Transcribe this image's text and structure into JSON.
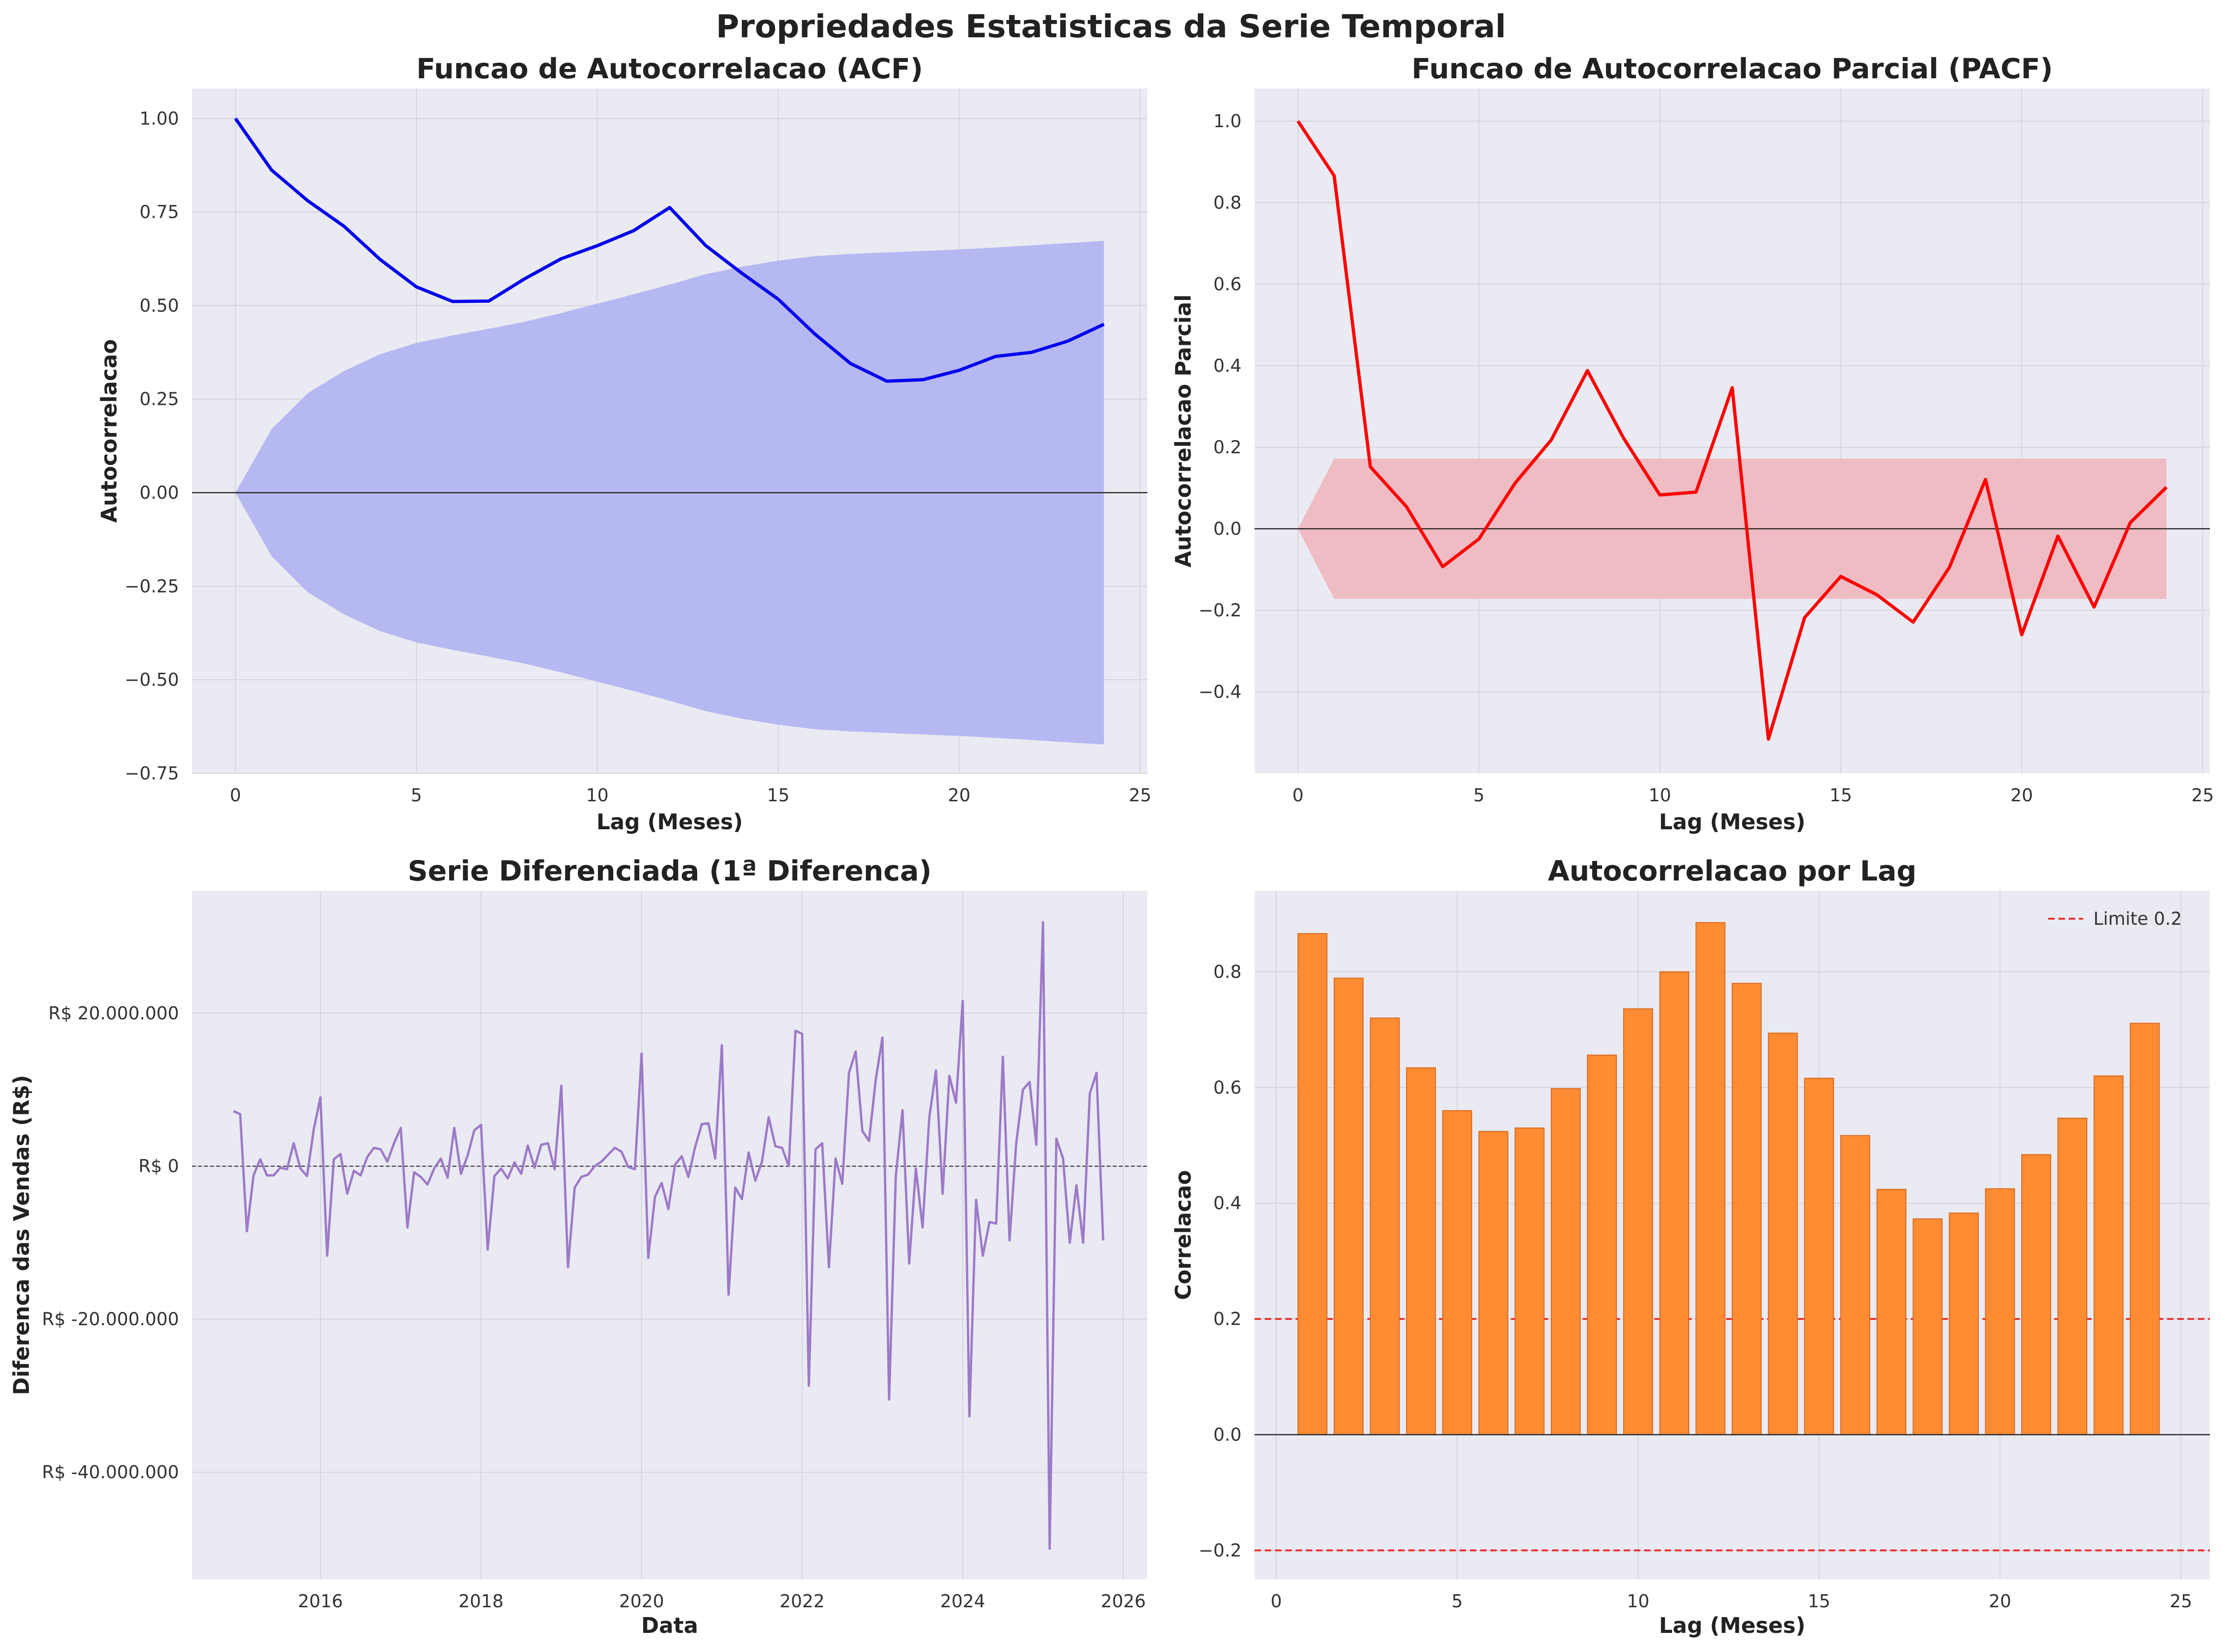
{
  "figure": {
    "title": "Propriedades Estatisticas da Serie Temporal"
  },
  "chart_data": [
    {
      "type": "line",
      "title": "Funcao de Autocorrelacao (ACF)",
      "xlabel": "Lag (Meses)",
      "ylabel": "Autocorrelacao",
      "xlim": [
        -1.2,
        25.2
      ],
      "ylim": [
        -0.75,
        1.08
      ],
      "xticks": [
        0,
        5,
        10,
        15,
        20,
        25
      ],
      "xtick_labels": [
        "0",
        "5",
        "10",
        "15",
        "20",
        "25"
      ],
      "yticks": [
        -0.75,
        -0.5,
        -0.25,
        0.0,
        0.25,
        0.5,
        0.75,
        1.0
      ],
      "ytick_labels": [
        "−0.75",
        "−0.50",
        "−0.25",
        "0.00",
        "0.25",
        "0.50",
        "0.75",
        "1.00"
      ],
      "grid": true,
      "colors": {
        "line": "#0000ee",
        "band": "#b6b8f2"
      },
      "x": [
        0,
        1,
        2,
        3,
        4,
        5,
        6,
        7,
        8,
        9,
        10,
        11,
        12,
        13,
        14,
        15,
        16,
        17,
        18,
        19,
        20,
        21,
        22,
        23,
        24
      ],
      "series": [
        {
          "values": [
            1.0,
            0.862,
            0.78,
            0.712,
            0.623,
            0.55,
            0.511,
            0.512,
            0.572,
            0.625,
            0.66,
            0.7,
            0.762,
            0.66,
            0.586,
            0.517,
            0.425,
            0.345,
            0.298,
            0.302,
            0.327,
            0.364,
            0.375,
            0.405,
            0.45
          ]
        }
      ],
      "confidence_band": {
        "upper": [
          0.0,
          0.17,
          0.266,
          0.325,
          0.37,
          0.4,
          0.42,
          0.438,
          0.457,
          0.48,
          0.505,
          0.53,
          0.556,
          0.584,
          0.604,
          0.62,
          0.632,
          0.638,
          0.642,
          0.646,
          0.65,
          0.655,
          0.661,
          0.667,
          0.673
        ]
      }
    },
    {
      "type": "line",
      "title": "Funcao de Autocorrelacao Parcial (PACF)",
      "xlabel": "Lag (Meses)",
      "ylabel": "Autocorrelacao Parcial",
      "xlim": [
        -1.2,
        25.2
      ],
      "ylim": [
        -0.6,
        1.08
      ],
      "xticks": [
        0,
        5,
        10,
        15,
        20,
        25
      ],
      "xtick_labels": [
        "0",
        "5",
        "10",
        "15",
        "20",
        "25"
      ],
      "yticks": [
        -0.4,
        -0.2,
        0.0,
        0.2,
        0.4,
        0.6,
        0.8,
        1.0
      ],
      "ytick_labels": [
        "−0.4",
        "−0.2",
        "0.0",
        "0.2",
        "0.4",
        "0.6",
        "0.8",
        "1.0"
      ],
      "grid": true,
      "colors": {
        "line": "#ff0000",
        "band": "#efbcc4"
      },
      "x": [
        0,
        1,
        2,
        3,
        4,
        5,
        6,
        7,
        8,
        9,
        10,
        11,
        12,
        13,
        14,
        15,
        16,
        17,
        18,
        19,
        20,
        21,
        22,
        23,
        24
      ],
      "series": [
        {
          "values": [
            1.0,
            0.866,
            0.152,
            0.054,
            -0.093,
            -0.025,
            0.112,
            0.218,
            0.388,
            0.222,
            0.083,
            0.09,
            0.346,
            -0.516,
            -0.218,
            -0.117,
            -0.162,
            -0.229,
            -0.095,
            0.121,
            -0.26,
            -0.018,
            -0.192,
            0.015,
            0.102
          ]
        }
      ],
      "confidence_band": {
        "upper": [
          0.0,
          0.172,
          0.172,
          0.172,
          0.172,
          0.172,
          0.172,
          0.172,
          0.172,
          0.172,
          0.172,
          0.172,
          0.172,
          0.172,
          0.172,
          0.172,
          0.172,
          0.172,
          0.172,
          0.172,
          0.172,
          0.172,
          0.172,
          0.172,
          0.172
        ]
      }
    },
    {
      "type": "line",
      "title": "Serie Diferenciada (1ª Diferenca)",
      "xlabel": "Data",
      "ylabel": "Diferenca das Vendas (R$)",
      "xlim": [
        2014.4,
        2026.3
      ],
      "ylim": [
        -54000000,
        36000000
      ],
      "xticks": [
        2016,
        2018,
        2020,
        2022,
        2024,
        2026
      ],
      "xtick_labels": [
        "2016",
        "2018",
        "2020",
        "2022",
        "2024",
        "2026"
      ],
      "yticks": [
        -40000000,
        -20000000,
        0,
        20000000
      ],
      "ytick_labels": [
        "R$ -40.000.000",
        "R$ -20.000.000",
        "R$ 0",
        "R$ 20.000.000"
      ],
      "grid": true,
      "colors": {
        "line": "#9d7ac8"
      },
      "x_start": "2014-12",
      "x_step": "1 mes",
      "series": [
        {
          "values": [
            7200000,
            6800000,
            -8500000,
            -1200000,
            900000,
            -1200000,
            -1200000,
            -200000,
            -400000,
            3000000,
            -300000,
            -1300000,
            4800000,
            9000000,
            -11700000,
            900000,
            1600000,
            -3600000,
            -600000,
            -1200000,
            1200000,
            2400000,
            2200000,
            600000,
            3000000,
            5000000,
            -8000000,
            -800000,
            -1400000,
            -2400000,
            -300000,
            1000000,
            -1500000,
            5000000,
            -1000000,
            1400000,
            4700000,
            5400000,
            -10900000,
            -1300000,
            -300000,
            -1600000,
            500000,
            -1000000,
            2700000,
            -200000,
            2800000,
            3000000,
            -400000,
            10500000,
            -13200000,
            -2800000,
            -1400000,
            -1100000,
            0,
            600000,
            1500000,
            2400000,
            1900000,
            -100000,
            -400000,
            14700000,
            -12000000,
            -4000000,
            -2200000,
            -5600000,
            200000,
            1300000,
            -1400000,
            2500000,
            5500000,
            5600000,
            1000000,
            15800000,
            -16800000,
            -2800000,
            -4300000,
            1800000,
            -1900000,
            600000,
            6400000,
            2600000,
            2400000,
            0,
            17700000,
            17300000,
            -28700000,
            2200000,
            3000000,
            -13200000,
            1000000,
            -2300000,
            12200000,
            15000000,
            4600000,
            3300000,
            11300000,
            16800000,
            -30500000,
            -1300000,
            7300000,
            -12700000,
            -300000,
            -8000000,
            6300000,
            12500000,
            -3600000,
            11800000,
            8300000,
            21600000,
            -32700000,
            -4400000,
            -11700000,
            -7300000,
            -7500000,
            14300000,
            -9700000,
            3000000,
            10000000,
            11000000,
            2800000,
            31900000,
            -50000000,
            3600000,
            1000000,
            -10000000,
            -2500000,
            -10000000,
            9500000,
            12200000,
            -9700000
          ]
        }
      ]
    },
    {
      "type": "bar",
      "title": "Autocorrelacao por Lag",
      "xlabel": "Lag (Meses)",
      "ylabel": "Correlacao",
      "xlim": [
        -0.6,
        25.8
      ],
      "ylim": [
        -0.25,
        0.94
      ],
      "xticks": [
        0,
        5,
        10,
        15,
        20,
        25
      ],
      "xtick_labels": [
        "0",
        "5",
        "10",
        "15",
        "20",
        "25"
      ],
      "yticks": [
        -0.2,
        0.0,
        0.2,
        0.4,
        0.6,
        0.8
      ],
      "ytick_labels": [
        "−0.2",
        "0.0",
        "0.2",
        "0.4",
        "0.6",
        "0.8"
      ],
      "grid": true,
      "legend": "top-right",
      "colors": {
        "bar": "#ff8c33",
        "bar_edge": "#d9661a",
        "limit": "#e8302a"
      },
      "categories": [
        1,
        2,
        3,
        4,
        5,
        6,
        7,
        8,
        9,
        10,
        11,
        12,
        13,
        14,
        15,
        16,
        17,
        18,
        19,
        20,
        21,
        22,
        23,
        24
      ],
      "values": [
        0.866,
        0.789,
        0.72,
        0.634,
        0.56,
        0.524,
        0.53,
        0.598,
        0.656,
        0.736,
        0.8,
        0.885,
        0.78,
        0.694,
        0.616,
        0.517,
        0.424,
        0.373,
        0.383,
        0.425,
        0.484,
        0.547,
        0.62,
        0.711
      ],
      "reference_lines": [
        {
          "name": "Limite 0.2",
          "y": 0.2
        },
        {
          "y": -0.2
        }
      ]
    }
  ]
}
